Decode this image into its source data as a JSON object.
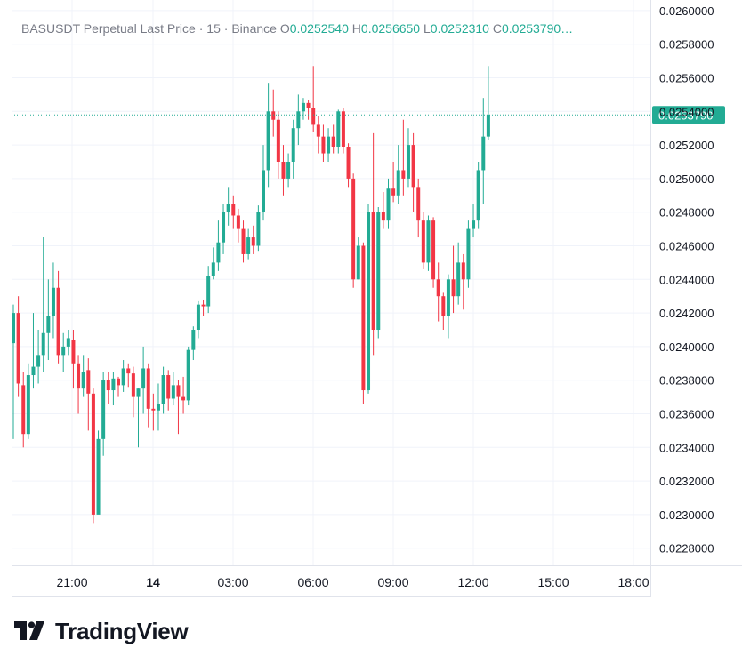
{
  "header": {
    "symbol": "BASUSDT Perpetual Last Price",
    "sep1": "·",
    "interval": "15",
    "sep2": "·",
    "exchange": "Binance",
    "o_label": "O",
    "o_value": "0.0252540",
    "h_label": "H",
    "h_value": "0.0256650",
    "l_label": "L",
    "l_value": "0.0252310",
    "c_label": "C",
    "c_value": "0.0253790…"
  },
  "logo": {
    "text": "TradingView"
  },
  "colors": {
    "up": "#22ab94",
    "down": "#f23645",
    "grid": "#f0f3fa",
    "axis_text": "#131722",
    "label_bg": "#22ab94"
  },
  "chart_data": {
    "type": "candlestick",
    "x_ticks": [
      "21:00",
      "14",
      "03:00",
      "06:00",
      "09:00",
      "12:00",
      "15:00",
      "18:00"
    ],
    "y_ticks": [
      "0.0260000",
      "0.0258000",
      "0.0256000",
      "0.0254000",
      "0.0252000",
      "0.0250000",
      "0.0248000",
      "0.0246000",
      "0.0244000",
      "0.0242000",
      "0.0240000",
      "0.0238000",
      "0.0236000",
      "0.0234000",
      "0.0232000",
      "0.0230000",
      "0.0228000"
    ],
    "ylim": [
      0.0227,
      0.026
    ],
    "last_price": 0.025379,
    "last_price_label": "0.0253790",
    "candles": [
      [
        0.02402,
        0.0242,
        0.02345,
        0.02425
      ],
      [
        0.0242,
        0.02378,
        0.0237,
        0.0243
      ],
      [
        0.02377,
        0.02348,
        0.0234,
        0.02385
      ],
      [
        0.02348,
        0.02383,
        0.02345,
        0.0239
      ],
      [
        0.02383,
        0.02388,
        0.02375,
        0.0242
      ],
      [
        0.02388,
        0.02395,
        0.02378,
        0.0241
      ],
      [
        0.02395,
        0.02408,
        0.02385,
        0.02465
      ],
      [
        0.02408,
        0.02418,
        0.02392,
        0.0244
      ],
      [
        0.02418,
        0.02435,
        0.02405,
        0.0245
      ],
      [
        0.02435,
        0.02395,
        0.0239,
        0.02445
      ],
      [
        0.02395,
        0.024,
        0.02385,
        0.02408
      ],
      [
        0.024,
        0.02405,
        0.02395,
        0.0241
      ],
      [
        0.02404,
        0.0239,
        0.02375,
        0.0241
      ],
      [
        0.0239,
        0.02375,
        0.0236,
        0.02395
      ],
      [
        0.02375,
        0.02385,
        0.0237,
        0.02395
      ],
      [
        0.02386,
        0.02372,
        0.0235,
        0.02393
      ],
      [
        0.02372,
        0.023,
        0.02295,
        0.02375
      ],
      [
        0.023,
        0.02345,
        0.02303,
        0.0235
      ],
      [
        0.02345,
        0.0238,
        0.02335,
        0.02385
      ],
      [
        0.0238,
        0.02374,
        0.02366,
        0.02385
      ],
      [
        0.02374,
        0.02381,
        0.02365,
        0.02385
      ],
      [
        0.02381,
        0.02377,
        0.0237,
        0.02382
      ],
      [
        0.02377,
        0.02387,
        0.02373,
        0.02392
      ],
      [
        0.02387,
        0.02384,
        0.02376,
        0.0239
      ],
      [
        0.02384,
        0.0237,
        0.02358,
        0.02388
      ],
      [
        0.0237,
        0.02375,
        0.0234,
        0.02375
      ],
      [
        0.02375,
        0.02387,
        0.0236,
        0.024
      ],
      [
        0.02387,
        0.02363,
        0.02352,
        0.0239
      ],
      [
        0.02363,
        0.02362,
        0.0235,
        0.02372
      ],
      [
        0.02362,
        0.02366,
        0.0235,
        0.02378
      ],
      [
        0.02366,
        0.02383,
        0.0236,
        0.02388
      ],
      [
        0.02383,
        0.02369,
        0.02362,
        0.02386
      ],
      [
        0.02369,
        0.02377,
        0.02365,
        0.02385
      ],
      [
        0.02377,
        0.0237,
        0.02348,
        0.0238
      ],
      [
        0.0237,
        0.02368,
        0.0236,
        0.02382
      ],
      [
        0.02368,
        0.02398,
        0.02365,
        0.024
      ],
      [
        0.02398,
        0.0241,
        0.02392,
        0.02412
      ],
      [
        0.0241,
        0.02425,
        0.02405,
        0.02427
      ],
      [
        0.02425,
        0.02424,
        0.02418,
        0.02428
      ],
      [
        0.02424,
        0.02442,
        0.0242,
        0.02448
      ],
      [
        0.02442,
        0.0245,
        0.0244,
        0.02459
      ],
      [
        0.0245,
        0.02462,
        0.02445,
        0.02475
      ],
      [
        0.02462,
        0.0248,
        0.02455,
        0.02485
      ],
      [
        0.0248,
        0.02485,
        0.02472,
        0.02495
      ],
      [
        0.02485,
        0.02478,
        0.0247,
        0.0249
      ],
      [
        0.02478,
        0.0247,
        0.02462,
        0.02482
      ],
      [
        0.0247,
        0.02455,
        0.0245,
        0.02475
      ],
      [
        0.02455,
        0.02465,
        0.02452,
        0.0247
      ],
      [
        0.02465,
        0.0246,
        0.02455,
        0.02472
      ],
      [
        0.0246,
        0.0248,
        0.02457,
        0.02484
      ],
      [
        0.0248,
        0.02505,
        0.02475,
        0.0252
      ],
      [
        0.02505,
        0.0254,
        0.02495,
        0.02557
      ],
      [
        0.0254,
        0.02535,
        0.02525,
        0.02553
      ],
      [
        0.02535,
        0.0251,
        0.025,
        0.0254
      ],
      [
        0.0251,
        0.025,
        0.0249,
        0.0252
      ],
      [
        0.025,
        0.0251,
        0.02495,
        0.02515
      ],
      [
        0.0251,
        0.0253,
        0.025,
        0.02535
      ],
      [
        0.0253,
        0.0254,
        0.0252,
        0.0255
      ],
      [
        0.0254,
        0.02545,
        0.02535,
        0.02548
      ],
      [
        0.02545,
        0.02542,
        0.02535,
        0.02547
      ],
      [
        0.02542,
        0.02532,
        0.02528,
        0.02567
      ],
      [
        0.02532,
        0.02525,
        0.02515,
        0.02537
      ],
      [
        0.02525,
        0.02515,
        0.0251,
        0.02532
      ],
      [
        0.02515,
        0.02525,
        0.0251,
        0.0253
      ],
      [
        0.02525,
        0.02519,
        0.02515,
        0.02532
      ],
      [
        0.02519,
        0.0254,
        0.02515,
        0.02541
      ],
      [
        0.0254,
        0.02519,
        0.02515,
        0.02542
      ],
      [
        0.02519,
        0.025,
        0.02495,
        0.02521
      ],
      [
        0.025,
        0.0244,
        0.02435,
        0.02503
      ],
      [
        0.0244,
        0.0246,
        0.0244,
        0.02465
      ],
      [
        0.0246,
        0.02374,
        0.02366,
        0.02462
      ],
      [
        0.02374,
        0.0248,
        0.02372,
        0.02485
      ],
      [
        0.0248,
        0.0241,
        0.02395,
        0.02527
      ],
      [
        0.0241,
        0.0248,
        0.02405,
        0.02483
      ],
      [
        0.0248,
        0.02475,
        0.0247,
        0.02492
      ],
      [
        0.02475,
        0.02494,
        0.0247,
        0.025
      ],
      [
        0.02494,
        0.0249,
        0.02486,
        0.0251
      ],
      [
        0.0249,
        0.02505,
        0.02485,
        0.0252
      ],
      [
        0.02505,
        0.025,
        0.0249,
        0.02535
      ],
      [
        0.025,
        0.0252,
        0.02495,
        0.0253
      ],
      [
        0.0252,
        0.02495,
        0.0248,
        0.02527
      ],
      [
        0.02495,
        0.02475,
        0.02465,
        0.025
      ],
      [
        0.02475,
        0.0245,
        0.02446,
        0.0248
      ],
      [
        0.0245,
        0.02475,
        0.02445,
        0.02478
      ],
      [
        0.02475,
        0.0244,
        0.02435,
        0.02477
      ],
      [
        0.0244,
        0.0243,
        0.02415,
        0.0245
      ],
      [
        0.0243,
        0.02418,
        0.0241,
        0.02432
      ],
      [
        0.02418,
        0.0244,
        0.02405,
        0.02443
      ],
      [
        0.0244,
        0.0243,
        0.0242,
        0.0246
      ],
      [
        0.0243,
        0.0245,
        0.02425,
        0.02462
      ],
      [
        0.0245,
        0.0244,
        0.02422,
        0.02455
      ],
      [
        0.0244,
        0.0247,
        0.02435,
        0.02475
      ],
      [
        0.0247,
        0.02475,
        0.02465,
        0.02485
      ],
      [
        0.02475,
        0.02505,
        0.0247,
        0.0251
      ],
      [
        0.02505,
        0.02525,
        0.02485,
        0.02548
      ],
      [
        0.02525,
        0.02538,
        0.02523,
        0.02567
      ]
    ]
  }
}
